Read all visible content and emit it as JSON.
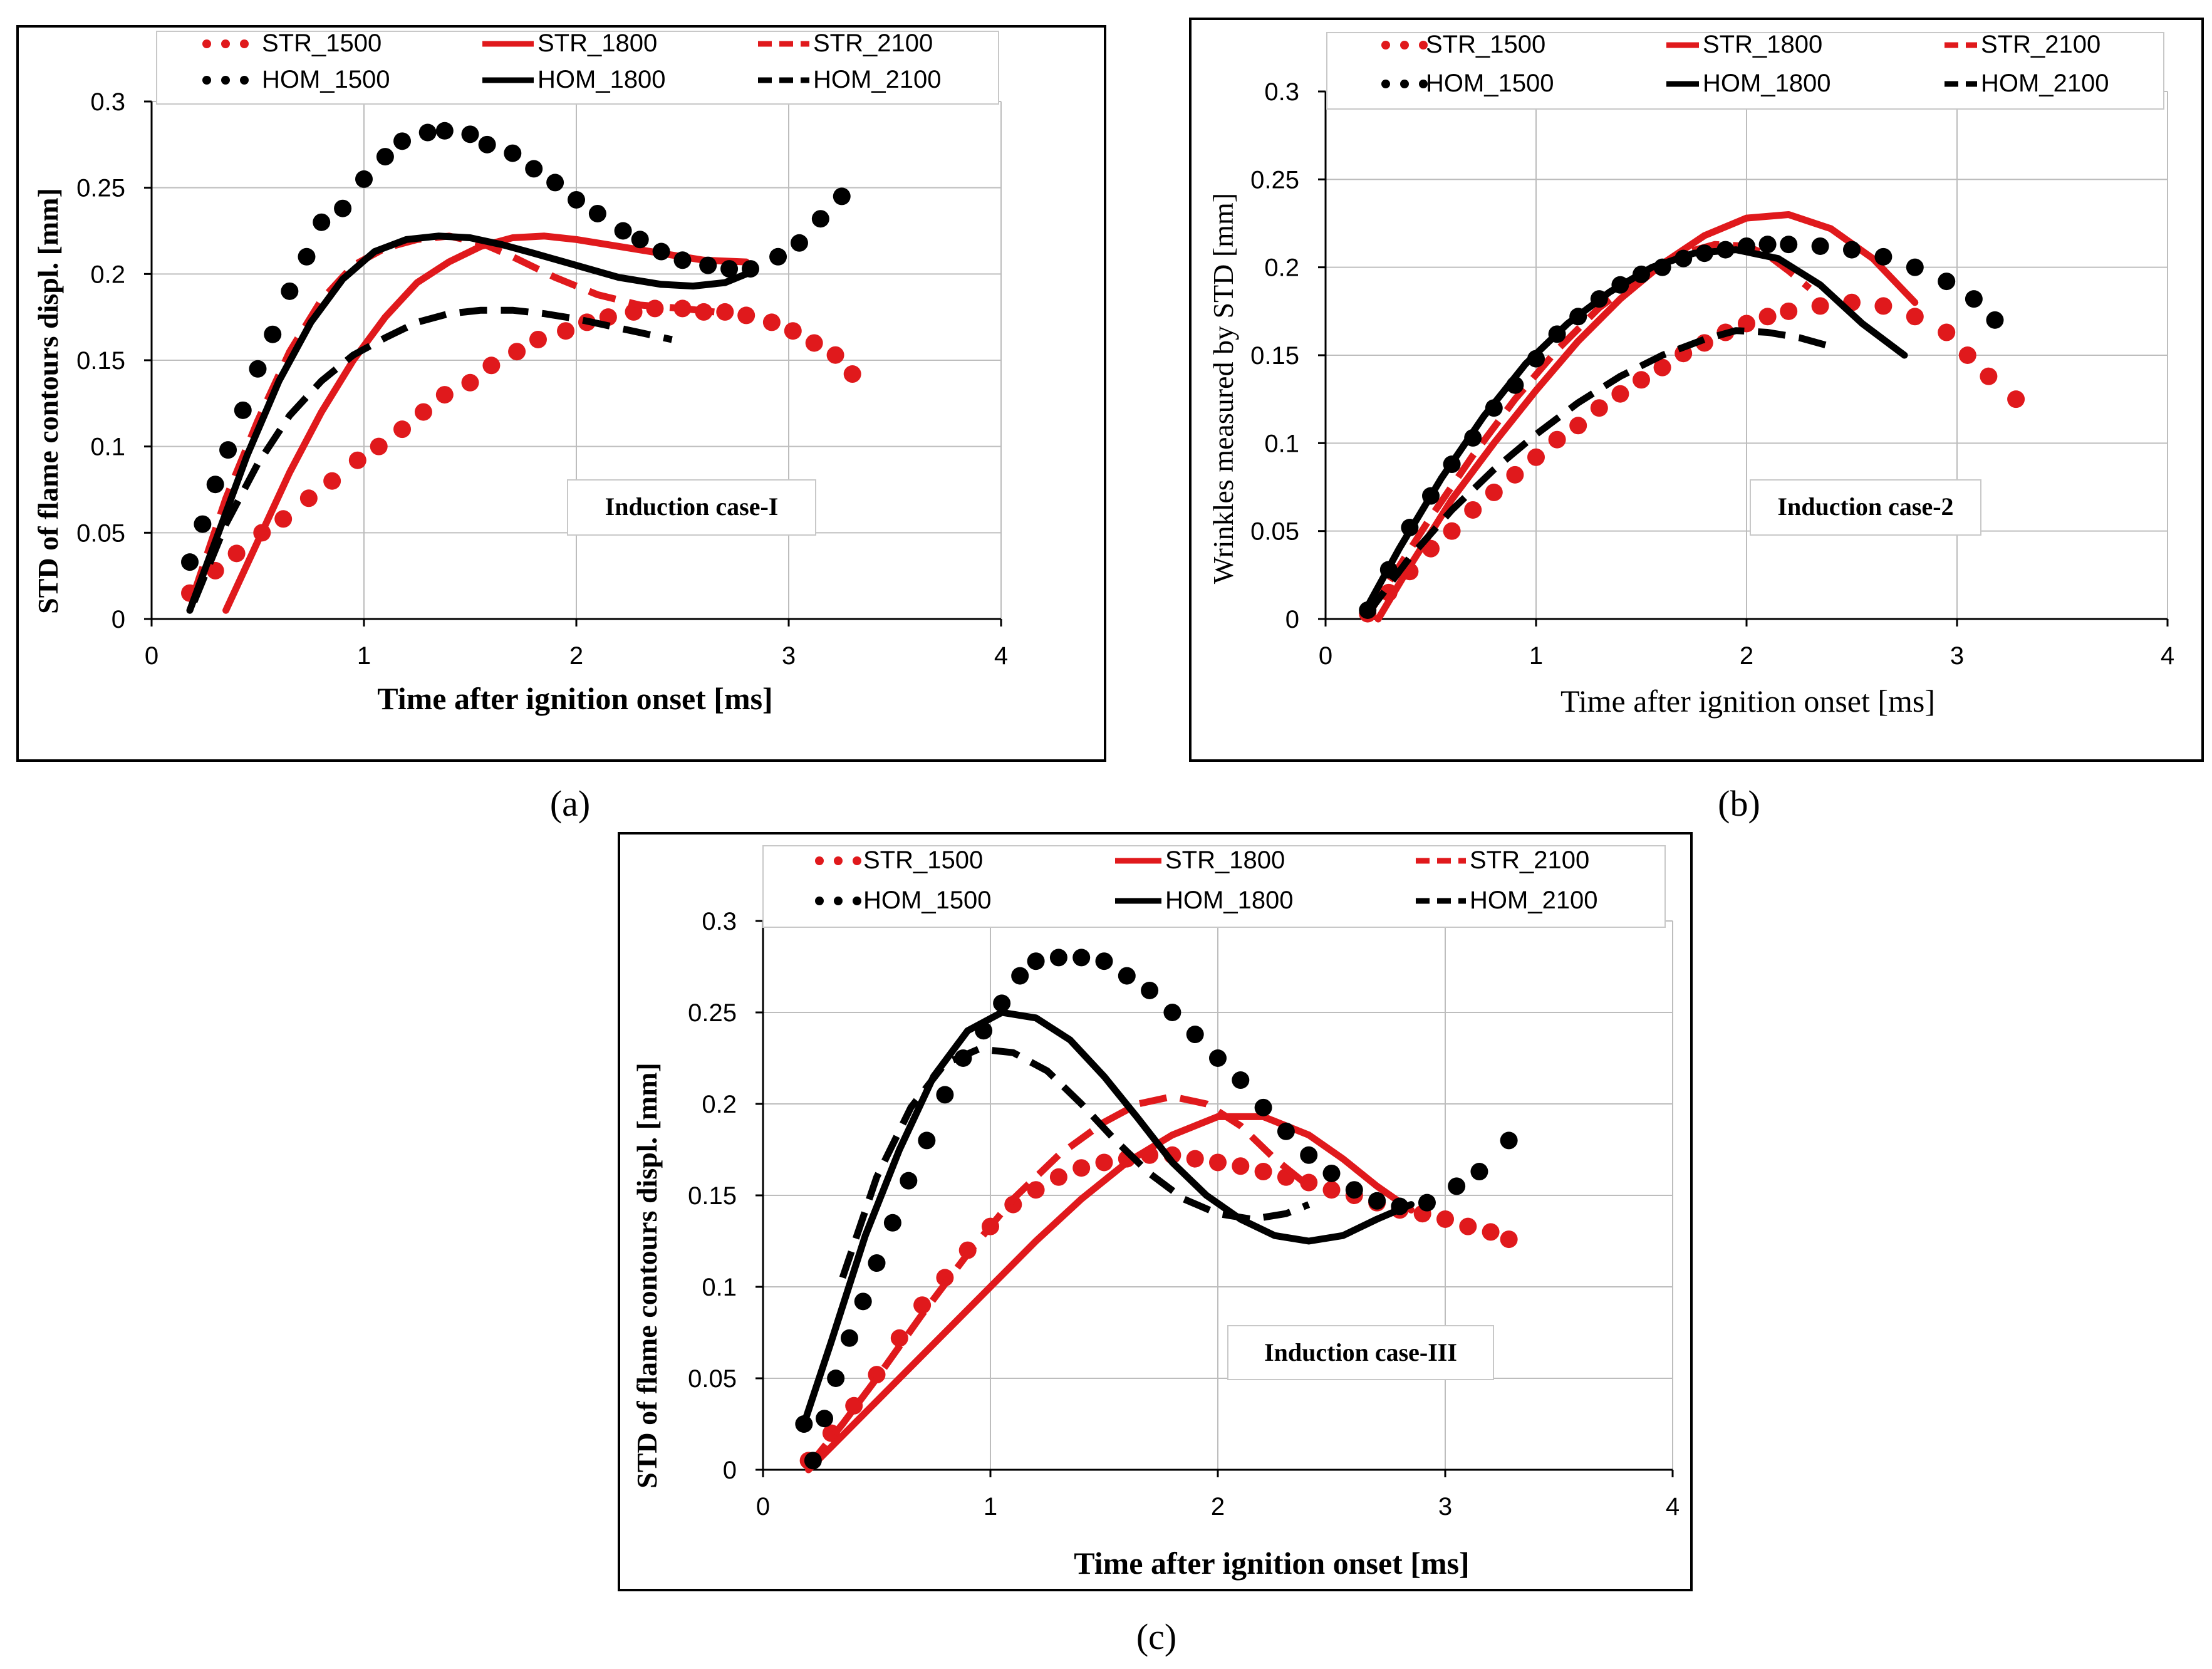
{
  "colors": {
    "str": "#e0191c",
    "hom": "#000000"
  },
  "legend": {
    "str_1500": "STR_1500",
    "str_1800": "STR_1800",
    "str_2100": "STR_2100",
    "hom_1500": "HOM_1500",
    "hom_1800": "HOM_1800",
    "hom_2100": "HOM_2100"
  },
  "panel_labels": [
    "(a)",
    "(b)",
    "(c)"
  ],
  "chart_data": [
    {
      "type": "line",
      "title": "",
      "annotation": "Induction case-I",
      "xlabel": "Time after ignition onset  [ms]",
      "ylabel": "STD of flame contours displ. [mm]",
      "xlim": [
        0,
        4
      ],
      "ylim": [
        0,
        0.3
      ],
      "xticks": [
        "0",
        "1",
        "2",
        "3",
        "4"
      ],
      "yticks": [
        "0",
        "0.05",
        "0.1",
        "0.15",
        "0.2",
        "0.25",
        "0.3"
      ],
      "series": [
        {
          "name": "STR_1500",
          "style": "dot",
          "color": "str",
          "x": [
            0.18,
            0.3,
            0.4,
            0.52,
            0.62,
            0.74,
            0.85,
            0.97,
            1.07,
            1.18,
            1.28,
            1.38,
            1.5,
            1.6,
            1.72,
            1.82,
            1.95,
            2.05,
            2.15,
            2.27,
            2.37,
            2.5,
            2.6,
            2.7,
            2.8,
            2.92,
            3.02,
            3.12,
            3.22,
            3.3
          ],
          "y": [
            0.015,
            0.028,
            0.038,
            0.05,
            0.058,
            0.07,
            0.08,
            0.092,
            0.1,
            0.11,
            0.12,
            0.13,
            0.137,
            0.147,
            0.155,
            0.162,
            0.167,
            0.172,
            0.175,
            0.178,
            0.18,
            0.18,
            0.178,
            0.178,
            0.176,
            0.172,
            0.167,
            0.16,
            0.153,
            0.142
          ]
        },
        {
          "name": "STR_1800",
          "style": "solid",
          "color": "str",
          "x": [
            0.35,
            0.5,
            0.65,
            0.8,
            0.95,
            1.1,
            1.25,
            1.4,
            1.55,
            1.7,
            1.85,
            2.0,
            2.2,
            2.4,
            2.6,
            2.8
          ],
          "y": [
            0.005,
            0.045,
            0.085,
            0.12,
            0.15,
            0.175,
            0.195,
            0.207,
            0.216,
            0.221,
            0.222,
            0.22,
            0.216,
            0.212,
            0.208,
            0.207
          ]
        },
        {
          "name": "STR_2100",
          "style": "dash",
          "color": "str",
          "x": [
            0.2,
            0.35,
            0.5,
            0.65,
            0.8,
            0.95,
            1.1,
            1.25,
            1.4,
            1.55,
            1.7,
            1.9,
            2.1,
            2.3,
            2.5,
            2.65
          ],
          "y": [
            0.015,
            0.07,
            0.115,
            0.155,
            0.185,
            0.205,
            0.215,
            0.22,
            0.222,
            0.218,
            0.21,
            0.198,
            0.188,
            0.182,
            0.18,
            0.178
          ]
        },
        {
          "name": "HOM_1500",
          "style": "dot",
          "color": "hom",
          "x": [
            0.18,
            0.24,
            0.3,
            0.36,
            0.43,
            0.5,
            0.57,
            0.65,
            0.73,
            0.8,
            0.9,
            1.0,
            1.1,
            1.18,
            1.3,
            1.38,
            1.5,
            1.58,
            1.7,
            1.8,
            1.9,
            2.0,
            2.1,
            2.22,
            2.3,
            2.4,
            2.5,
            2.62,
            2.72,
            2.82,
            2.95,
            3.05,
            3.15,
            3.25
          ],
          "y": [
            0.033,
            0.055,
            0.078,
            0.098,
            0.121,
            0.145,
            0.165,
            0.19,
            0.21,
            0.23,
            0.238,
            0.255,
            0.268,
            0.277,
            0.282,
            0.283,
            0.281,
            0.275,
            0.27,
            0.261,
            0.253,
            0.243,
            0.235,
            0.225,
            0.22,
            0.213,
            0.208,
            0.205,
            0.203,
            0.203,
            0.21,
            0.218,
            0.232,
            0.245
          ]
        },
        {
          "name": "HOM_1800",
          "style": "solid",
          "color": "hom",
          "x": [
            0.18,
            0.3,
            0.45,
            0.6,
            0.75,
            0.9,
            1.05,
            1.2,
            1.35,
            1.5,
            1.65,
            1.8,
            2.0,
            2.2,
            2.4,
            2.55,
            2.7,
            2.8
          ],
          "y": [
            0.005,
            0.045,
            0.095,
            0.138,
            0.172,
            0.197,
            0.213,
            0.22,
            0.222,
            0.221,
            0.217,
            0.212,
            0.205,
            0.198,
            0.194,
            0.193,
            0.195,
            0.2
          ]
        },
        {
          "name": "HOM_2100",
          "style": "dash",
          "color": "hom",
          "x": [
            0.2,
            0.35,
            0.5,
            0.65,
            0.8,
            0.95,
            1.1,
            1.25,
            1.4,
            1.55,
            1.7,
            1.85,
            2.0,
            2.15,
            2.3,
            2.45
          ],
          "y": [
            0.01,
            0.055,
            0.09,
            0.118,
            0.138,
            0.153,
            0.163,
            0.172,
            0.177,
            0.179,
            0.179,
            0.177,
            0.174,
            0.17,
            0.166,
            0.162
          ]
        }
      ]
    },
    {
      "type": "line",
      "title": "",
      "annotation": "Induction case-2",
      "xlabel": "Time after ignition onset  [ms]",
      "ylabel": "Wrinkles measured by STD  [mm]",
      "xlim": [
        0,
        4
      ],
      "ylim": [
        0,
        0.3
      ],
      "xticks": [
        "0",
        "1",
        "2",
        "3",
        "4"
      ],
      "yticks": [
        "0",
        "0.05",
        "0.1",
        "0.15",
        "0.2",
        "0.25",
        "0.3"
      ],
      "series": [
        {
          "name": "STR_1500",
          "style": "dot",
          "color": "str",
          "x": [
            0.2,
            0.3,
            0.4,
            0.5,
            0.6,
            0.7,
            0.8,
            0.9,
            1.0,
            1.1,
            1.2,
            1.3,
            1.4,
            1.5,
            1.6,
            1.7,
            1.8,
            1.9,
            2.0,
            2.1,
            2.2,
            2.35,
            2.5,
            2.65,
            2.8,
            2.95,
            3.05,
            3.15,
            3.28
          ],
          "y": [
            0.003,
            0.015,
            0.027,
            0.04,
            0.05,
            0.062,
            0.072,
            0.082,
            0.092,
            0.102,
            0.11,
            0.12,
            0.128,
            0.136,
            0.143,
            0.151,
            0.157,
            0.163,
            0.168,
            0.172,
            0.175,
            0.178,
            0.18,
            0.178,
            0.172,
            0.163,
            0.15,
            0.138,
            0.125
          ]
        },
        {
          "name": "STR_1800",
          "style": "solid",
          "color": "str",
          "x": [
            0.25,
            0.4,
            0.6,
            0.8,
            1.0,
            1.2,
            1.4,
            1.6,
            1.8,
            2.0,
            2.2,
            2.4,
            2.6,
            2.8
          ],
          "y": [
            0.0,
            0.03,
            0.068,
            0.1,
            0.13,
            0.158,
            0.182,
            0.202,
            0.218,
            0.228,
            0.23,
            0.222,
            0.205,
            0.18
          ]
        },
        {
          "name": "STR_2100",
          "style": "dash",
          "color": "str",
          "x": [
            0.2,
            0.35,
            0.5,
            0.7,
            0.9,
            1.1,
            1.3,
            1.5,
            1.7,
            1.85,
            2.0,
            2.1,
            2.2,
            2.3
          ],
          "y": [
            0.002,
            0.03,
            0.058,
            0.093,
            0.125,
            0.153,
            0.177,
            0.195,
            0.208,
            0.213,
            0.212,
            0.207,
            0.198,
            0.188
          ]
        },
        {
          "name": "HOM_1500",
          "style": "dot",
          "color": "hom",
          "x": [
            0.2,
            0.3,
            0.4,
            0.5,
            0.6,
            0.7,
            0.8,
            0.9,
            1.0,
            1.1,
            1.2,
            1.3,
            1.4,
            1.5,
            1.6,
            1.7,
            1.8,
            1.9,
            2.0,
            2.1,
            2.2,
            2.35,
            2.5,
            2.65,
            2.8,
            2.95,
            3.08,
            3.18
          ],
          "y": [
            0.005,
            0.028,
            0.052,
            0.07,
            0.088,
            0.103,
            0.12,
            0.133,
            0.148,
            0.162,
            0.172,
            0.182,
            0.19,
            0.196,
            0.2,
            0.205,
            0.208,
            0.21,
            0.212,
            0.213,
            0.213,
            0.212,
            0.21,
            0.206,
            0.2,
            0.192,
            0.182,
            0.17
          ]
        },
        {
          "name": "HOM_1800",
          "style": "solid",
          "color": "hom",
          "x": [
            0.18,
            0.35,
            0.55,
            0.75,
            0.95,
            1.15,
            1.35,
            1.55,
            1.75,
            1.95,
            2.15,
            2.35,
            2.55,
            2.75
          ],
          "y": [
            0.003,
            0.04,
            0.08,
            0.115,
            0.145,
            0.168,
            0.186,
            0.2,
            0.208,
            0.21,
            0.205,
            0.19,
            0.168,
            0.15
          ]
        },
        {
          "name": "HOM_2100",
          "style": "dash",
          "color": "hom",
          "x": [
            0.2,
            0.4,
            0.6,
            0.8,
            1.0,
            1.2,
            1.4,
            1.6,
            1.8,
            1.95,
            2.1,
            2.25,
            2.4
          ],
          "y": [
            0.003,
            0.035,
            0.062,
            0.085,
            0.105,
            0.123,
            0.138,
            0.15,
            0.159,
            0.164,
            0.163,
            0.16,
            0.155
          ]
        }
      ]
    },
    {
      "type": "line",
      "title": "",
      "annotation": "Induction case-III",
      "xlabel": "Time after ignition onset  [ms]",
      "ylabel": "STD of flame contours displ. [mm]",
      "xlim": [
        0,
        4
      ],
      "ylim": [
        0,
        0.3
      ],
      "xticks": [
        "0",
        "1",
        "2",
        "3",
        "4"
      ],
      "yticks": [
        "0",
        "0.05",
        "0.1",
        "0.15",
        "0.2",
        "0.25",
        "0.3"
      ],
      "series": [
        {
          "name": "STR_1500",
          "style": "dot",
          "color": "str",
          "x": [
            0.2,
            0.3,
            0.4,
            0.5,
            0.6,
            0.7,
            0.8,
            0.9,
            1.0,
            1.1,
            1.2,
            1.3,
            1.4,
            1.5,
            1.6,
            1.7,
            1.8,
            1.9,
            2.0,
            2.1,
            2.2,
            2.3,
            2.4,
            2.5,
            2.6,
            2.7,
            2.8,
            2.9,
            3.0,
            3.1,
            3.2,
            3.28
          ],
          "y": [
            0.005,
            0.02,
            0.035,
            0.052,
            0.072,
            0.09,
            0.105,
            0.12,
            0.133,
            0.145,
            0.153,
            0.16,
            0.165,
            0.168,
            0.17,
            0.172,
            0.172,
            0.17,
            0.168,
            0.166,
            0.163,
            0.16,
            0.157,
            0.153,
            0.15,
            0.146,
            0.142,
            0.14,
            0.137,
            0.133,
            0.13,
            0.126
          ]
        },
        {
          "name": "STR_1800",
          "style": "solid",
          "color": "str",
          "x": [
            0.2,
            0.4,
            0.6,
            0.8,
            1.0,
            1.2,
            1.4,
            1.6,
            1.8,
            2.0,
            2.2,
            2.4,
            2.55,
            2.7,
            2.85
          ],
          "y": [
            0.0,
            0.025,
            0.05,
            0.075,
            0.1,
            0.125,
            0.148,
            0.168,
            0.183,
            0.193,
            0.193,
            0.183,
            0.17,
            0.155,
            0.142
          ]
        },
        {
          "name": "STR_2100",
          "style": "dash",
          "color": "str",
          "x": [
            0.2,
            0.35,
            0.5,
            0.7,
            0.9,
            1.1,
            1.3,
            1.5,
            1.65,
            1.8,
            1.95,
            2.1,
            2.25,
            2.4
          ],
          "y": [
            0.002,
            0.025,
            0.05,
            0.085,
            0.118,
            0.148,
            0.172,
            0.19,
            0.2,
            0.204,
            0.2,
            0.188,
            0.17,
            0.155
          ]
        },
        {
          "name": "HOM_1500",
          "style": "dot",
          "color": "hom",
          "x": [
            0.18,
            0.22,
            0.27,
            0.32,
            0.38,
            0.44,
            0.5,
            0.57,
            0.64,
            0.72,
            0.8,
            0.88,
            0.97,
            1.05,
            1.13,
            1.2,
            1.3,
            1.4,
            1.5,
            1.6,
            1.7,
            1.8,
            1.9,
            2.0,
            2.1,
            2.2,
            2.3,
            2.4,
            2.5,
            2.6,
            2.7,
            2.8,
            2.92,
            3.05,
            3.15,
            3.28
          ],
          "y": [
            0.025,
            0.005,
            0.028,
            0.05,
            0.072,
            0.092,
            0.113,
            0.135,
            0.158,
            0.18,
            0.205,
            0.225,
            0.24,
            0.255,
            0.27,
            0.278,
            0.28,
            0.28,
            0.278,
            0.27,
            0.262,
            0.25,
            0.238,
            0.225,
            0.213,
            0.198,
            0.185,
            0.172,
            0.162,
            0.153,
            0.147,
            0.144,
            0.146,
            0.155,
            0.163,
            0.18
          ]
        },
        {
          "name": "HOM_1800",
          "style": "solid",
          "color": "hom",
          "x": [
            0.18,
            0.3,
            0.45,
            0.6,
            0.75,
            0.9,
            1.05,
            1.2,
            1.35,
            1.5,
            1.65,
            1.8,
            1.95,
            2.1,
            2.25,
            2.4,
            2.55,
            2.7,
            2.85
          ],
          "y": [
            0.025,
            0.07,
            0.128,
            0.175,
            0.215,
            0.24,
            0.25,
            0.247,
            0.235,
            0.215,
            0.192,
            0.168,
            0.15,
            0.137,
            0.128,
            0.125,
            0.128,
            0.137,
            0.145
          ]
        },
        {
          "name": "HOM_2100",
          "style": "dash",
          "color": "hom",
          "x": [
            0.35,
            0.5,
            0.65,
            0.8,
            0.95,
            1.1,
            1.25,
            1.4,
            1.55,
            1.7,
            1.85,
            2.0,
            2.15,
            2.3,
            2.4
          ],
          "y": [
            0.105,
            0.16,
            0.198,
            0.222,
            0.23,
            0.228,
            0.218,
            0.2,
            0.18,
            0.162,
            0.148,
            0.14,
            0.137,
            0.14,
            0.145
          ]
        }
      ]
    }
  ]
}
